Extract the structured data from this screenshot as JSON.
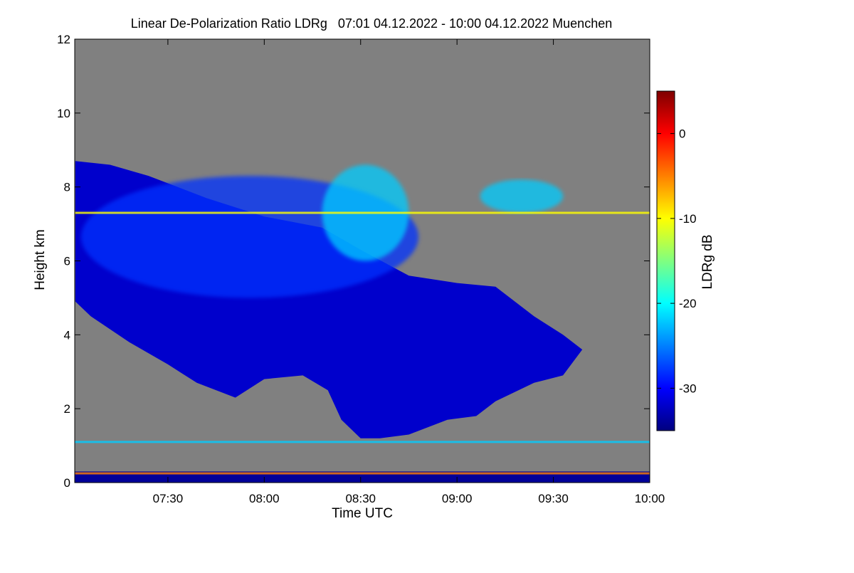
{
  "chart_data": {
    "type": "heatmap",
    "title": "Linear De-Polarization Ratio LDRg   07:01 04.12.2022 - 10:00 04.12.2022 Muenchen",
    "xlabel": "Time UTC",
    "ylabel": "Height km",
    "x_range": [
      "07:01",
      "10:00"
    ],
    "x_ticks": [
      "07:30",
      "08:00",
      "08:30",
      "09:00",
      "09:30",
      "10:00"
    ],
    "y_range": [
      0,
      12
    ],
    "y_ticks": [
      "0",
      "2",
      "4",
      "6",
      "8",
      "10",
      "12"
    ],
    "colorbar": {
      "label": "LDRg dB",
      "range": [
        -35,
        5
      ],
      "ticks": [
        "0",
        "-10",
        "-20",
        "-30"
      ],
      "colors": [
        "#00007f",
        "#0000ff",
        "#0080ff",
        "#00ffff",
        "#80ff80",
        "#ffff00",
        "#ff8000",
        "#ff0000",
        "#7f0000"
      ]
    },
    "background_color": "#808080",
    "features": [
      {
        "name": "main cloud layer",
        "upper": [
          [
            7.02,
            8.7
          ],
          [
            7.2,
            8.6
          ],
          [
            7.4,
            8.3
          ],
          [
            7.7,
            7.7
          ],
          [
            8.0,
            7.2
          ],
          [
            8.3,
            6.9
          ],
          [
            8.5,
            6.3
          ],
          [
            8.75,
            5.6
          ],
          [
            9.0,
            5.4
          ],
          [
            9.2,
            5.3
          ],
          [
            9.4,
            4.5
          ],
          [
            9.55,
            4.0
          ],
          [
            9.65,
            3.6
          ]
        ],
        "lower": [
          [
            9.65,
            3.6
          ],
          [
            9.55,
            2.9
          ],
          [
            9.4,
            2.7
          ],
          [
            9.2,
            2.2
          ],
          [
            9.1,
            1.8
          ],
          [
            8.95,
            1.7
          ],
          [
            8.75,
            1.3
          ],
          [
            8.6,
            1.2
          ],
          [
            8.5,
            1.2
          ],
          [
            8.4,
            1.7
          ],
          [
            8.33,
            2.5
          ],
          [
            8.2,
            2.9
          ],
          [
            8.0,
            2.8
          ],
          [
            7.85,
            2.3
          ],
          [
            7.65,
            2.7
          ],
          [
            7.5,
            3.2
          ],
          [
            7.3,
            3.8
          ],
          [
            7.1,
            4.5
          ],
          [
            7.02,
            4.9
          ]
        ],
        "ldr_db": -32
      },
      {
        "name": "ice cloud upper part",
        "x": [
          7.05,
          8.8
        ],
        "y": [
          5.0,
          8.3
        ],
        "ldr_db": -28
      },
      {
        "name": "depolarizing ice region",
        "x": [
          8.3,
          8.75
        ],
        "y": [
          6.0,
          8.6
        ],
        "ldr_db": -22
      },
      {
        "name": "upper ice cloud",
        "x": [
          9.12,
          9.55
        ],
        "y": [
          7.3,
          8.2
        ],
        "ldr_db": -22
      },
      {
        "name": "artifact line 7.3 km",
        "y": 7.3,
        "ldr_db": -10
      },
      {
        "name": "artifact line 1.1 km",
        "y": 1.1,
        "ldr_db": -22
      },
      {
        "name": "boundary layer",
        "y": [
          0.0,
          0.3
        ],
        "ldr_db": -34
      },
      {
        "name": "artifact line 0.25 km",
        "y": 0.25,
        "ldr_db": -5
      }
    ]
  }
}
